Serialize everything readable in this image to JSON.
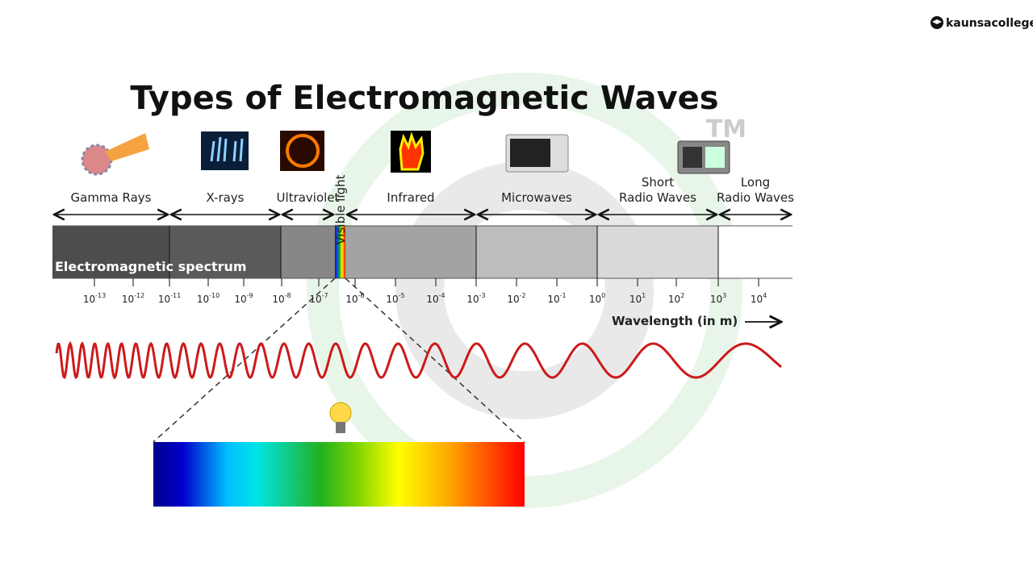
{
  "logo": "kaunsacollege",
  "title": "Types of Electromagnetic Waves",
  "tm": "TM",
  "bands": [
    {
      "lines": [
        "Gamma Rays"
      ]
    },
    {
      "lines": [
        "X-rays"
      ]
    },
    {
      "lines": [
        "Ultraviolet"
      ]
    },
    {
      "lines": [
        "Infrared"
      ]
    },
    {
      "lines": [
        "Microwaves"
      ]
    },
    {
      "lines": [
        "Short",
        "Radio Waves"
      ]
    },
    {
      "lines": [
        "Long",
        "Radio Waves"
      ]
    }
  ],
  "visible_label": "Visible light",
  "spectrum_label": "Electromagnetic spectrum",
  "ticks": [
    {
      "base": "10",
      "exp": "-13"
    },
    {
      "base": "10",
      "exp": "-12"
    },
    {
      "base": "10",
      "exp": "-11"
    },
    {
      "base": "10",
      "exp": "-10"
    },
    {
      "base": "10",
      "exp": "-9"
    },
    {
      "base": "10",
      "exp": "-8"
    },
    {
      "base": "10",
      "exp": "-7"
    },
    {
      "base": "10",
      "exp": "-6"
    },
    {
      "base": "10",
      "exp": "-5"
    },
    {
      "base": "10",
      "exp": "-4"
    },
    {
      "base": "10",
      "exp": "-3"
    },
    {
      "base": "10",
      "exp": "-2"
    },
    {
      "base": "10",
      "exp": "-1"
    },
    {
      "base": "10",
      "exp": "0"
    },
    {
      "base": "10",
      "exp": "1"
    },
    {
      "base": "10",
      "exp": "2"
    },
    {
      "base": "10",
      "exp": "3"
    },
    {
      "base": "10",
      "exp": "4"
    }
  ],
  "axis_label": "Wavelength (in m)"
}
